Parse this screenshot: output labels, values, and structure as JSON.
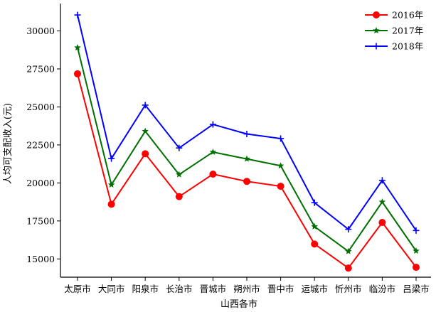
{
  "chart_data": {
    "type": "line",
    "xlabel": "山西各市",
    "ylabel": "人均可支配收入(元)",
    "categories": [
      "太原市",
      "大同市",
      "阳泉市",
      "长治市",
      "晋城市",
      "朔州市",
      "晋中市",
      "运城市",
      "忻州市",
      "临汾市",
      "吕梁市"
    ],
    "ylim": [
      13800,
      31800
    ],
    "yticks": [
      15000,
      17500,
      20000,
      22500,
      25000,
      27500,
      30000
    ],
    "grid": false,
    "legend_position": "top-right",
    "series": [
      {
        "name": "2016年",
        "color": "#ff0000",
        "marker": "circle",
        "values": [
          27180,
          18600,
          21920,
          19100,
          20580,
          20100,
          19780,
          15980,
          14400,
          17400,
          14450
        ]
      },
      {
        "name": "2017年",
        "color": "#007000",
        "marker": "star",
        "values": [
          28900,
          19880,
          23400,
          20550,
          22030,
          21580,
          21130,
          17130,
          15500,
          18750,
          15530
        ]
      },
      {
        "name": "2018年",
        "color": "#0000ff",
        "marker": "plus",
        "values": [
          31050,
          21600,
          25120,
          22300,
          23850,
          23220,
          22920,
          18700,
          16950,
          20170,
          16870
        ]
      }
    ]
  }
}
